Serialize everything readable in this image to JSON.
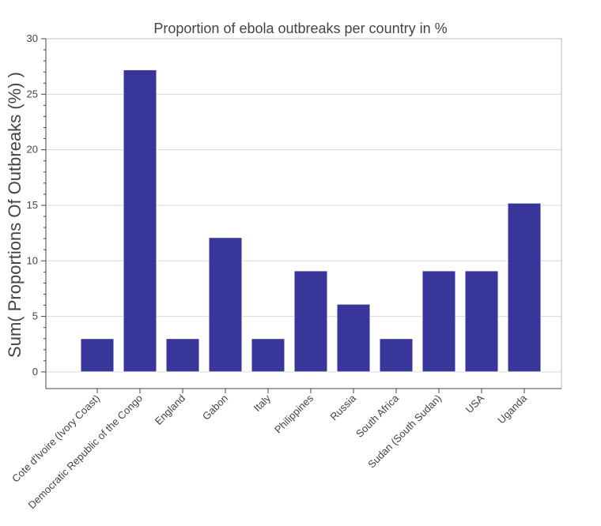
{
  "chart_data": {
    "type": "bar",
    "title": "Proportion of ebola outbreaks per country in %",
    "xlabel": "",
    "ylabel": "Sum( Proportions Of Outbreaks (%) )",
    "categories": [
      "Cote d'Ivoire (Ivory Coast)",
      "Democratic Republic of the Congo",
      "England",
      "Gabon",
      "Italy",
      "Philippines",
      "Russia",
      "South Africa",
      "Sudan (South Sudan)",
      "USA",
      "Uganda"
    ],
    "values": [
      3.0,
      27.2,
      3.0,
      12.1,
      3.0,
      9.1,
      6.1,
      3.0,
      9.1,
      9.1,
      15.2
    ],
    "ylim": [
      -1.5,
      30
    ],
    "yticks": [
      0,
      5,
      10,
      15,
      20,
      25,
      30
    ],
    "grid": true,
    "colors": {
      "bar": "#2d2a96",
      "grid": "#d9d9d9",
      "axis": "#444444"
    }
  }
}
